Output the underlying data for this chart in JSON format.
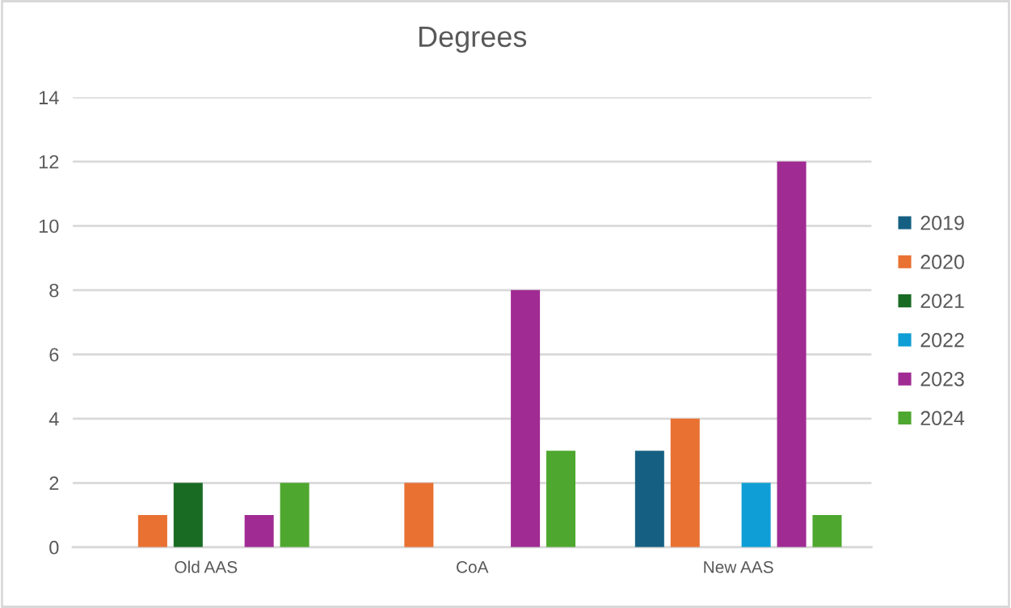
{
  "chart_data": {
    "type": "bar",
    "title": "Degrees",
    "categories": [
      "Old AAS",
      "CoA",
      "New AAS"
    ],
    "series": [
      {
        "name": "2019",
        "color": "#156082",
        "values": [
          null,
          null,
          3
        ]
      },
      {
        "name": "2020",
        "color": "#e97132",
        "values": [
          1,
          2,
          4
        ]
      },
      {
        "name": "2021",
        "color": "#196b24",
        "values": [
          2,
          null,
          null
        ]
      },
      {
        "name": "2022",
        "color": "#0f9ed5",
        "values": [
          null,
          null,
          2
        ]
      },
      {
        "name": "2023",
        "color": "#a02b93",
        "values": [
          1,
          8,
          12
        ]
      },
      {
        "name": "2024",
        "color": "#4ea72e",
        "values": [
          2,
          3,
          1
        ]
      }
    ],
    "ylim": [
      0,
      14
    ],
    "yticks": [
      0,
      2,
      4,
      6,
      8,
      10,
      12,
      14
    ],
    "grid": "y",
    "legend": "right"
  }
}
